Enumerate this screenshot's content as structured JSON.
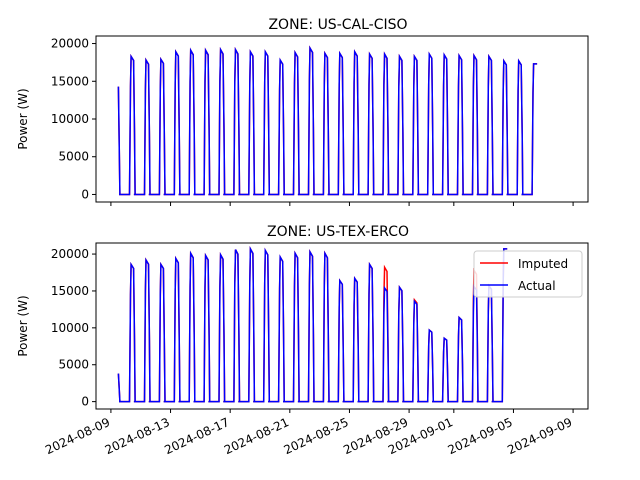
{
  "chart_data": [
    {
      "type": "line",
      "title": "ZONE: US-CAL-CISO",
      "xlabel": "",
      "ylabel": "Power (W)",
      "ylim": [
        -1000,
        21000
      ],
      "yticks": [
        0,
        5000,
        10000,
        15000,
        20000
      ],
      "xlim": [
        "2024-08-08",
        "2024-09-10"
      ],
      "xticks": [
        "2024-08-09",
        "2024-08-13",
        "2024-08-17",
        "2024-08-21",
        "2024-08-25",
        "2024-08-29",
        "2024-09-01",
        "2024-09-05",
        "2024-09-09"
      ],
      "xtick_labels_visible": false,
      "series_start": "2024-08-09 12:00",
      "series_end": "2024-09-07 18:00",
      "daily_peaks": [
        14300,
        18300,
        17800,
        17900,
        18900,
        19100,
        19100,
        19200,
        19200,
        18900,
        18900,
        17800,
        18800,
        19400,
        18700,
        18700,
        18900,
        18600,
        18600,
        18300,
        18300,
        18600,
        18500,
        18400,
        18400,
        18300,
        17700,
        17700,
        17300
      ],
      "series": [
        {
          "name": "Imputed",
          "color": "#ff0000"
        },
        {
          "name": "Actual",
          "color": "#0000ff"
        }
      ],
      "legend": null
    },
    {
      "type": "line",
      "title": "ZONE: US-TEX-ERCO",
      "xlabel": "",
      "ylabel": "Power (W)",
      "ylim": [
        -1000,
        21500
      ],
      "yticks": [
        0,
        5000,
        10000,
        15000,
        20000
      ],
      "xlim": [
        "2024-08-08",
        "2024-09-10"
      ],
      "xticks": [
        "2024-08-09",
        "2024-08-13",
        "2024-08-17",
        "2024-08-21",
        "2024-08-25",
        "2024-08-29",
        "2024-09-01",
        "2024-09-05",
        "2024-09-09"
      ],
      "xtick_labels_visible": true,
      "series_start": "2024-08-09 12:00",
      "series_end": "2024-09-07 18:00",
      "actual_daily_peaks": [
        3800,
        18600,
        19200,
        18600,
        19400,
        20100,
        19800,
        19900,
        20600,
        20700,
        20500,
        19600,
        20100,
        20300,
        20100,
        16400,
        16700,
        18600,
        15400,
        15500,
        13600,
        9700,
        8600,
        11400,
        15600,
        15700,
        20700
      ],
      "imputed_daily_peaks": [
        3800,
        18600,
        19200,
        18600,
        19400,
        20100,
        19800,
        19900,
        20600,
        20700,
        20500,
        19600,
        20100,
        20300,
        20100,
        16400,
        16700,
        18600,
        18200,
        15500,
        13800,
        9700,
        8600,
        11400,
        17800,
        15700,
        20700
      ],
      "series": [
        {
          "name": "Imputed",
          "color": "#ff0000"
        },
        {
          "name": "Actual",
          "color": "#0000ff"
        }
      ],
      "legend": "upper right"
    }
  ]
}
